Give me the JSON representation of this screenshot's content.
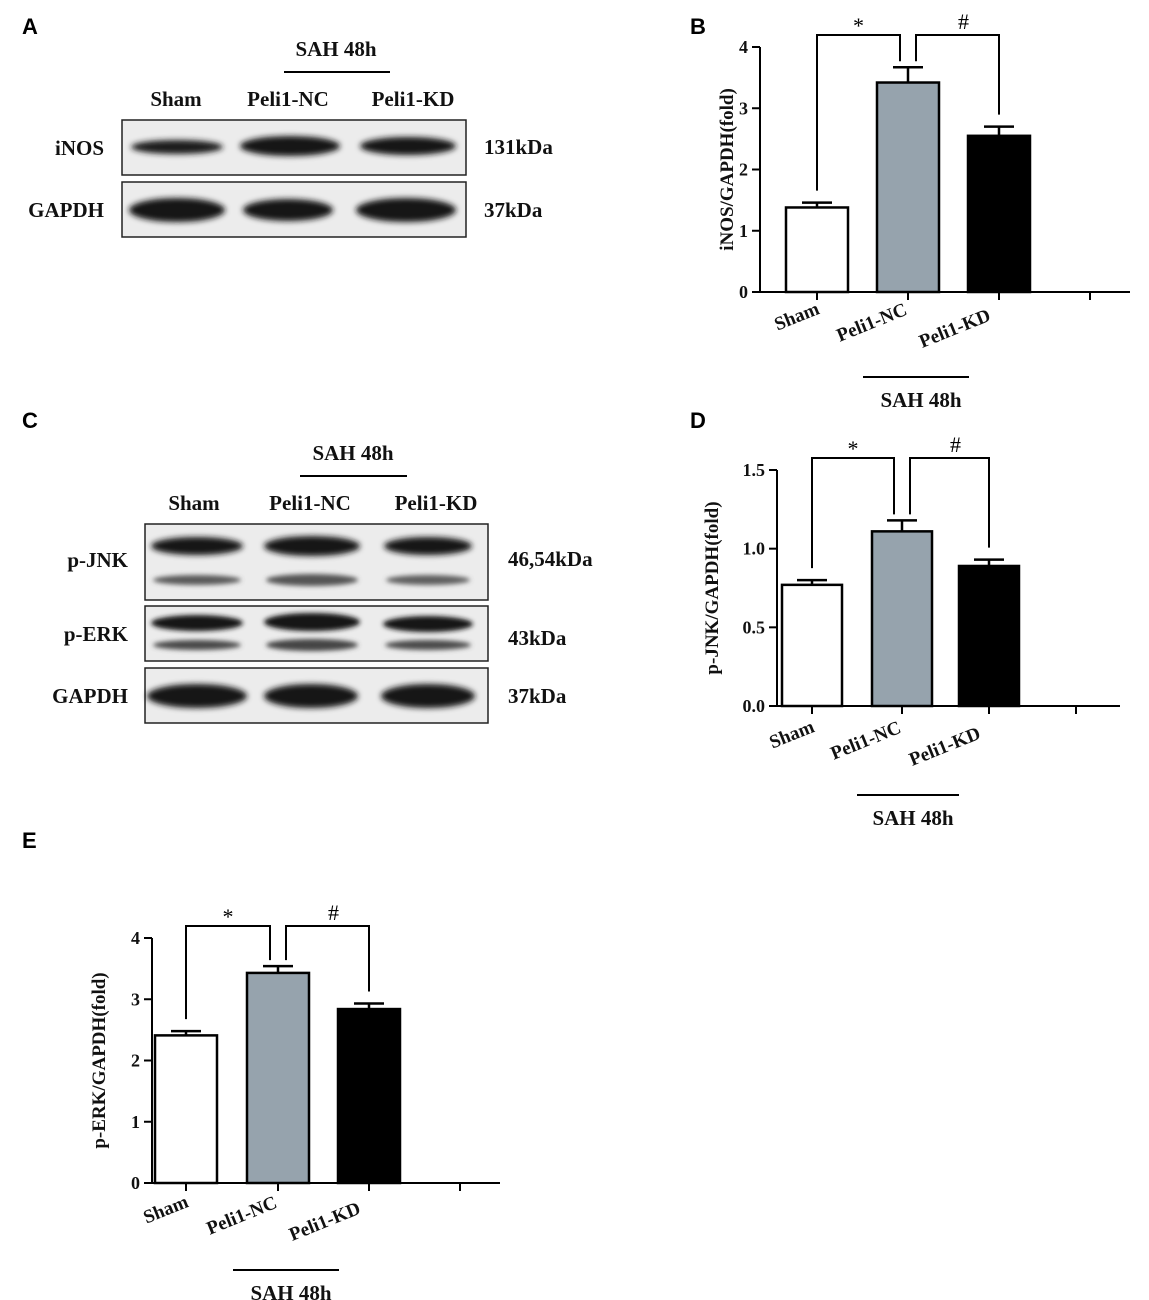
{
  "panels": {
    "A": "A",
    "B": "B",
    "C": "C",
    "D": "D",
    "E": "E"
  },
  "blot_A": {
    "group_label": "SAH 48h",
    "lanes": [
      "Sham",
      "Peli1-NC",
      "Peli1-KD"
    ],
    "rows": [
      {
        "name": "iNOS",
        "kda": "131kDa"
      },
      {
        "name": "GAPDH",
        "kda": "37kDa"
      }
    ]
  },
  "blot_C": {
    "group_label": "SAH 48h",
    "lanes": [
      "Sham",
      "Peli1-NC",
      "Peli1-KD"
    ],
    "rows": [
      {
        "name": "p-JNK",
        "kda": "46,54kDa"
      },
      {
        "name": "p-ERK",
        "kda": "43kDa"
      },
      {
        "name": "GAPDH",
        "kda": "37kDa"
      }
    ]
  },
  "colors": {
    "sham": "#ffffff",
    "peli1_nc": "#96a3ad",
    "peli1_kd": "#000000"
  },
  "chart_data": [
    {
      "panel": "B",
      "type": "bar",
      "categories": [
        "Sham",
        "Peli1-NC",
        "Peli1-KD"
      ],
      "values": [
        1.38,
        3.42,
        2.55
      ],
      "errors": [
        0.08,
        0.25,
        0.15
      ],
      "ylabel": "iNOS/GAPDH(fold)",
      "ylim": [
        0,
        4
      ],
      "yticks": [
        "0",
        "1",
        "2",
        "3",
        "4"
      ],
      "group_label": "SAH 48h",
      "significance": [
        "*",
        "#"
      ]
    },
    {
      "panel": "D",
      "type": "bar",
      "categories": [
        "Sham",
        "Peli1-NC",
        "Peli1-KD"
      ],
      "values": [
        0.77,
        1.11,
        0.89
      ],
      "errors": [
        0.03,
        0.07,
        0.04
      ],
      "ylabel": "p-JNK/GAPDH(fold)",
      "ylim": [
        0,
        1.5
      ],
      "yticks": [
        "0.0",
        "0.5",
        "1.0",
        "1.5"
      ],
      "group_label": "SAH 48h",
      "significance": [
        "*",
        "#"
      ]
    },
    {
      "panel": "E",
      "type": "bar",
      "categories": [
        "Sham",
        "Peli1-NC",
        "Peli1-KD"
      ],
      "values": [
        2.41,
        3.43,
        2.84
      ],
      "errors": [
        0.07,
        0.11,
        0.09
      ],
      "ylabel": "p-ERK/GAPDH(fold)",
      "ylim": [
        0,
        4
      ],
      "yticks": [
        "0",
        "1",
        "2",
        "3",
        "4"
      ],
      "group_label": "SAH 48h",
      "significance": [
        "*",
        "#"
      ]
    }
  ]
}
